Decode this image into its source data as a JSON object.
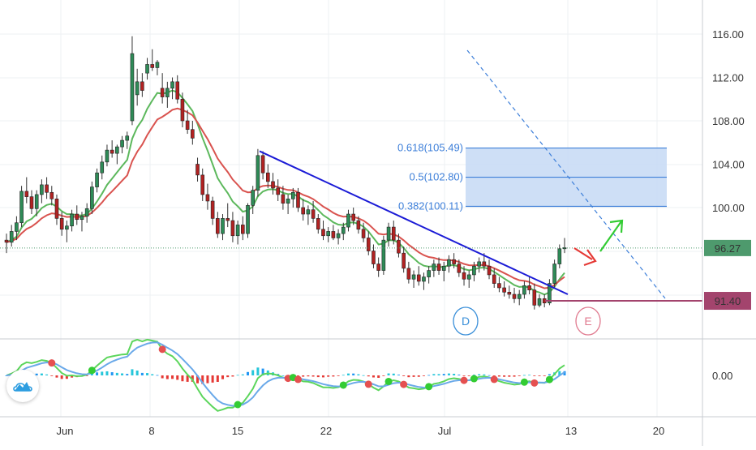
{
  "chart_data": {
    "type": "candlestick",
    "price_axis": {
      "ticks": [
        "116.00",
        "112.00",
        "108.00",
        "104.00",
        "100.00",
        "0.00"
      ],
      "tick_values": [
        116,
        112,
        108,
        104,
        100
      ],
      "range": [
        88.5,
        119.5
      ]
    },
    "date_axis": {
      "ticks": [
        "Jun",
        "8",
        "15",
        "22",
        "Jul",
        "13",
        "20"
      ]
    },
    "last_price": {
      "value": 96.27,
      "label": "96.27",
      "color": "#4e9a6d"
    },
    "support_level": {
      "value": 91.4,
      "label": "91.40",
      "color": "#a3446d"
    },
    "fib_levels": [
      {
        "ratio": "0.618",
        "price": 105.49,
        "label": "0.618(105.49)"
      },
      {
        "ratio": "0.5",
        "price": 102.8,
        "label": "0.5(102.80)"
      },
      {
        "ratio": "0.382",
        "price": 100.11,
        "label": "0.382(100.11)"
      }
    ],
    "wave_labels": [
      {
        "text": "D",
        "color": "#3a8fd9"
      },
      {
        "text": "E",
        "color": "#e07a8f"
      }
    ],
    "trendline": {
      "from": 105.2,
      "to": 92.0,
      "color": "#1b1bd6"
    },
    "projection_arrows": [
      {
        "direction": "down",
        "color": "#e53935"
      },
      {
        "direction": "up",
        "color": "#33cc33"
      }
    ],
    "candles": [
      [
        97.0,
        97.6,
        95.8,
        96.8
      ],
      [
        96.8,
        98.4,
        96.4,
        97.8
      ],
      [
        97.8,
        99.2,
        97.0,
        98.6
      ],
      [
        98.6,
        102.0,
        98.2,
        101.5
      ],
      [
        101.5,
        102.8,
        100.4,
        101.0
      ],
      [
        101.0,
        101.6,
        99.4,
        99.9
      ],
      [
        99.9,
        101.6,
        99.2,
        101.2
      ],
      [
        101.2,
        102.6,
        100.4,
        102.1
      ],
      [
        102.1,
        102.8,
        100.8,
        101.4
      ],
      [
        101.4,
        102.0,
        100.2,
        100.8
      ],
      [
        100.8,
        101.2,
        98.4,
        99.0
      ],
      [
        99.0,
        99.6,
        97.4,
        98.0
      ],
      [
        98.0,
        98.8,
        96.8,
        98.3
      ],
      [
        98.3,
        99.8,
        97.8,
        99.4
      ],
      [
        99.4,
        100.2,
        98.4,
        98.9
      ],
      [
        98.9,
        99.6,
        97.8,
        99.2
      ],
      [
        99.2,
        100.4,
        98.6,
        99.9
      ],
      [
        99.9,
        102.4,
        99.4,
        101.9
      ],
      [
        101.9,
        103.6,
        101.4,
        103.2
      ],
      [
        103.2,
        104.8,
        102.6,
        104.2
      ],
      [
        104.2,
        105.8,
        103.8,
        105.3
      ],
      [
        105.3,
        106.2,
        104.6,
        105.0
      ],
      [
        105.0,
        105.8,
        104.0,
        105.6
      ],
      [
        105.6,
        106.6,
        105.0,
        106.2
      ],
      [
        106.2,
        107.0,
        105.4,
        106.6
      ],
      [
        108.0,
        115.8,
        107.6,
        114.2
      ],
      [
        110.4,
        112.8,
        109.4,
        111.6
      ],
      [
        111.6,
        112.4,
        110.2,
        110.8
      ],
      [
        112.4,
        113.8,
        111.8,
        113.2
      ],
      [
        113.2,
        114.6,
        112.6,
        112.9
      ],
      [
        112.9,
        113.6,
        112.2,
        113.4
      ],
      [
        111.0,
        112.4,
        109.6,
        110.2
      ],
      [
        110.2,
        111.6,
        109.2,
        111.0
      ],
      [
        111.0,
        112.0,
        110.0,
        111.6
      ],
      [
        111.6,
        112.2,
        109.6,
        110.0
      ],
      [
        110.0,
        110.6,
        107.4,
        108.0
      ],
      [
        108.0,
        109.0,
        106.8,
        107.2
      ],
      [
        107.2,
        108.0,
        105.8,
        106.4
      ],
      [
        104.0,
        104.6,
        102.4,
        103.0
      ],
      [
        103.0,
        103.6,
        100.6,
        101.2
      ],
      [
        101.2,
        102.2,
        99.8,
        100.6
      ],
      [
        100.6,
        101.0,
        98.4,
        99.0
      ],
      [
        99.0,
        99.6,
        97.2,
        97.6
      ],
      [
        97.6,
        99.4,
        97.0,
        99.0
      ],
      [
        99.0,
        100.4,
        98.2,
        98.8
      ],
      [
        98.8,
        99.6,
        96.8,
        97.4
      ],
      [
        97.4,
        98.8,
        96.6,
        98.4
      ],
      [
        98.4,
        99.2,
        97.0,
        97.6
      ],
      [
        97.6,
        100.4,
        97.2,
        100.2
      ],
      [
        100.2,
        102.0,
        99.4,
        101.6
      ],
      [
        101.6,
        105.4,
        101.0,
        104.8
      ],
      [
        104.8,
        105.2,
        102.6,
        103.2
      ],
      [
        103.2,
        104.0,
        101.8,
        102.4
      ],
      [
        102.4,
        103.2,
        101.2,
        101.8
      ],
      [
        101.8,
        102.6,
        100.6,
        101.2
      ],
      [
        101.2,
        102.0,
        99.8,
        100.4
      ],
      [
        100.4,
        101.2,
        99.4,
        100.8
      ],
      [
        100.8,
        101.8,
        100.0,
        101.4
      ],
      [
        101.4,
        101.8,
        99.6,
        100.0
      ],
      [
        100.0,
        100.8,
        98.8,
        99.4
      ],
      [
        99.4,
        100.2,
        98.4,
        99.8
      ],
      [
        99.8,
        100.6,
        98.6,
        99.0
      ],
      [
        99.0,
        99.4,
        97.6,
        98.0
      ],
      [
        98.0,
        98.8,
        97.0,
        97.4
      ],
      [
        97.4,
        98.2,
        96.8,
        97.8
      ],
      [
        97.8,
        98.4,
        97.0,
        97.2
      ],
      [
        97.2,
        98.0,
        96.6,
        97.6
      ],
      [
        97.6,
        98.6,
        97.0,
        98.2
      ],
      [
        98.2,
        99.8,
        97.8,
        99.4
      ],
      [
        99.4,
        100.0,
        98.4,
        98.8
      ],
      [
        98.8,
        99.2,
        97.6,
        98.0
      ],
      [
        98.0,
        98.6,
        96.8,
        97.2
      ],
      [
        97.2,
        97.8,
        95.6,
        96.0
      ],
      [
        96.0,
        96.6,
        94.4,
        94.8
      ],
      [
        94.8,
        95.4,
        93.6,
        94.2
      ],
      [
        94.2,
        97.4,
        93.8,
        97.0
      ],
      [
        97.0,
        98.6,
        96.4,
        98.2
      ],
      [
        98.2,
        98.8,
        96.6,
        97.0
      ],
      [
        97.0,
        97.6,
        95.4,
        95.8
      ],
      [
        95.8,
        96.4,
        94.0,
        94.4
      ],
      [
        94.4,
        95.0,
        93.0,
        93.4
      ],
      [
        93.4,
        94.2,
        92.6,
        93.8
      ],
      [
        93.8,
        94.6,
        92.8,
        93.2
      ],
      [
        93.2,
        94.0,
        92.4,
        93.6
      ],
      [
        93.6,
        94.6,
        93.0,
        94.2
      ],
      [
        94.2,
        95.2,
        93.6,
        94.8
      ],
      [
        94.8,
        95.4,
        93.8,
        94.2
      ],
      [
        94.2,
        95.0,
        93.2,
        94.6
      ],
      [
        94.6,
        95.6,
        94.0,
        95.2
      ],
      [
        95.2,
        95.8,
        94.4,
        94.8
      ],
      [
        94.8,
        95.2,
        93.6,
        94.0
      ],
      [
        94.0,
        94.6,
        92.8,
        93.4
      ],
      [
        93.4,
        94.2,
        92.6,
        93.8
      ],
      [
        93.8,
        95.0,
        93.2,
        94.6
      ],
      [
        94.6,
        95.4,
        94.0,
        95.0
      ],
      [
        95.0,
        95.8,
        94.2,
        94.6
      ],
      [
        94.6,
        95.2,
        93.4,
        93.8
      ],
      [
        93.8,
        94.4,
        92.6,
        93.0
      ],
      [
        93.0,
        93.6,
        92.2,
        92.6
      ],
      [
        92.6,
        93.2,
        91.8,
        92.2
      ],
      [
        92.2,
        92.8,
        91.6,
        92.0
      ],
      [
        92.0,
        92.6,
        91.2,
        91.6
      ],
      [
        91.6,
        92.4,
        91.0,
        92.0
      ],
      [
        92.0,
        93.2,
        91.6,
        92.8
      ],
      [
        92.8,
        93.6,
        92.0,
        92.4
      ],
      [
        92.4,
        93.0,
        90.6,
        91.0
      ],
      [
        91.0,
        92.0,
        90.8,
        91.6
      ],
      [
        91.6,
        92.0,
        90.8,
        91.2
      ],
      [
        91.2,
        93.4,
        91.0,
        93.0
      ],
      [
        93.0,
        95.2,
        92.6,
        94.8
      ],
      [
        94.8,
        96.6,
        94.4,
        96.2
      ],
      [
        96.2,
        97.2,
        95.8,
        96.3
      ]
    ],
    "oscillator": {
      "zero_label": "0.00"
    }
  }
}
